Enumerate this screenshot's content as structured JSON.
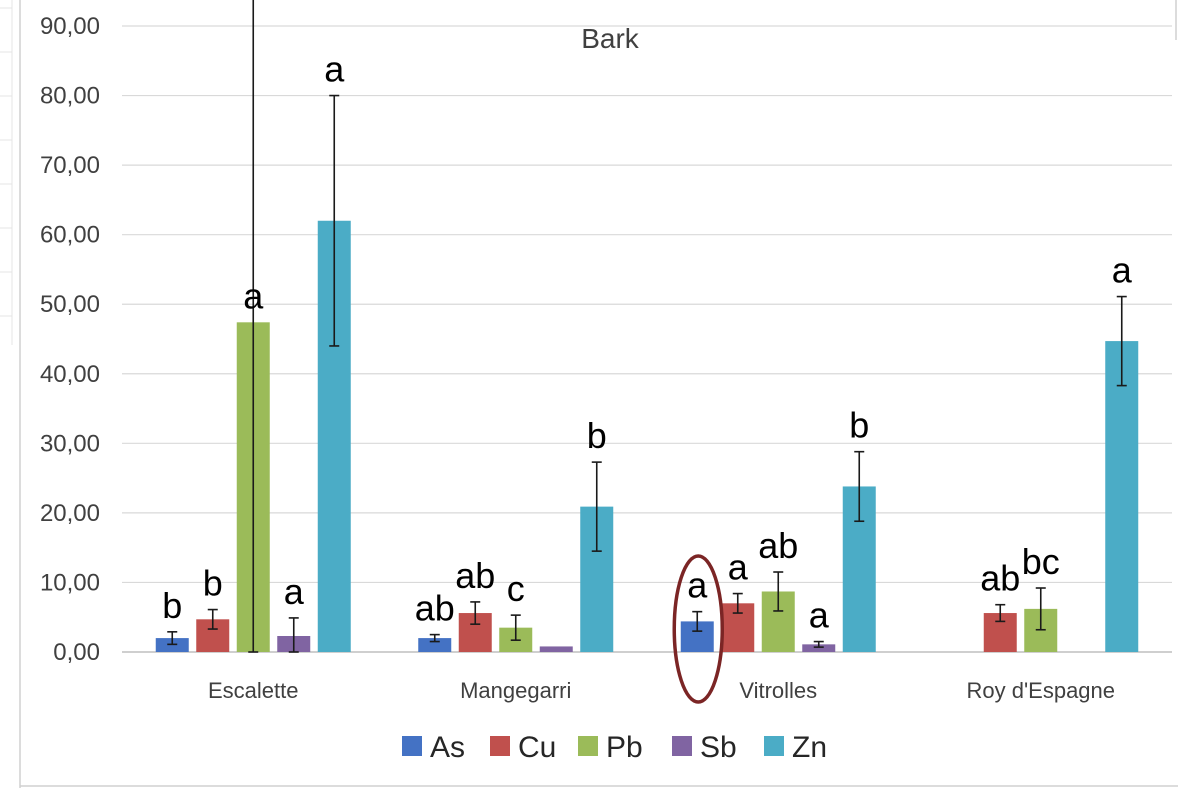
{
  "chart_data": {
    "type": "bar",
    "title": "Bark",
    "xlabel": "",
    "ylabel": "",
    "ylim": [
      0,
      90
    ],
    "yticks": [
      "0,00",
      "10,00",
      "20,00",
      "30,00",
      "40,00",
      "50,00",
      "60,00",
      "70,00",
      "80,00",
      "90,00"
    ],
    "grid": true,
    "legend_position": "bottom",
    "categories": [
      "Escalette",
      "Mangegarri",
      "Vitrolles",
      "Roy d'Espagne"
    ],
    "series": [
      {
        "name": "As",
        "color": "#4472C4",
        "values": [
          2.0,
          2.0,
          4.4,
          null
        ],
        "errors": [
          0.9,
          0.5,
          1.4,
          null
        ],
        "letters": [
          "b",
          "ab",
          "a",
          ""
        ]
      },
      {
        "name": "Cu",
        "color": "#C0504D",
        "values": [
          4.7,
          5.6,
          7.0,
          5.6
        ],
        "errors": [
          1.4,
          1.6,
          1.4,
          1.2
        ],
        "letters": [
          "b",
          "ab",
          "a",
          "ab"
        ]
      },
      {
        "name": "Pb",
        "color": "#9BBB59",
        "values": [
          47.4,
          3.5,
          8.7,
          6.2
        ],
        "errors": [
          47.4,
          1.8,
          2.8,
          3.0
        ],
        "letters": [
          "a",
          "c",
          "ab",
          "bc"
        ]
      },
      {
        "name": "Sb",
        "color": "#8064A2",
        "values": [
          2.3,
          0.8,
          1.1,
          null
        ],
        "errors": [
          2.6,
          0.0,
          0.4,
          null
        ],
        "letters": [
          "a",
          "",
          "a",
          ""
        ]
      },
      {
        "name": "Zn",
        "color": "#4BACC6",
        "values": [
          62.0,
          20.9,
          23.8,
          44.7
        ],
        "errors": [
          18.0,
          6.4,
          5.0,
          6.4
        ],
        "letters": [
          "a",
          "b",
          "b",
          "a"
        ]
      }
    ],
    "annotation": {
      "shape": "ellipse",
      "color": "#7B2525",
      "category": "Vitrolles",
      "series": "As"
    }
  }
}
